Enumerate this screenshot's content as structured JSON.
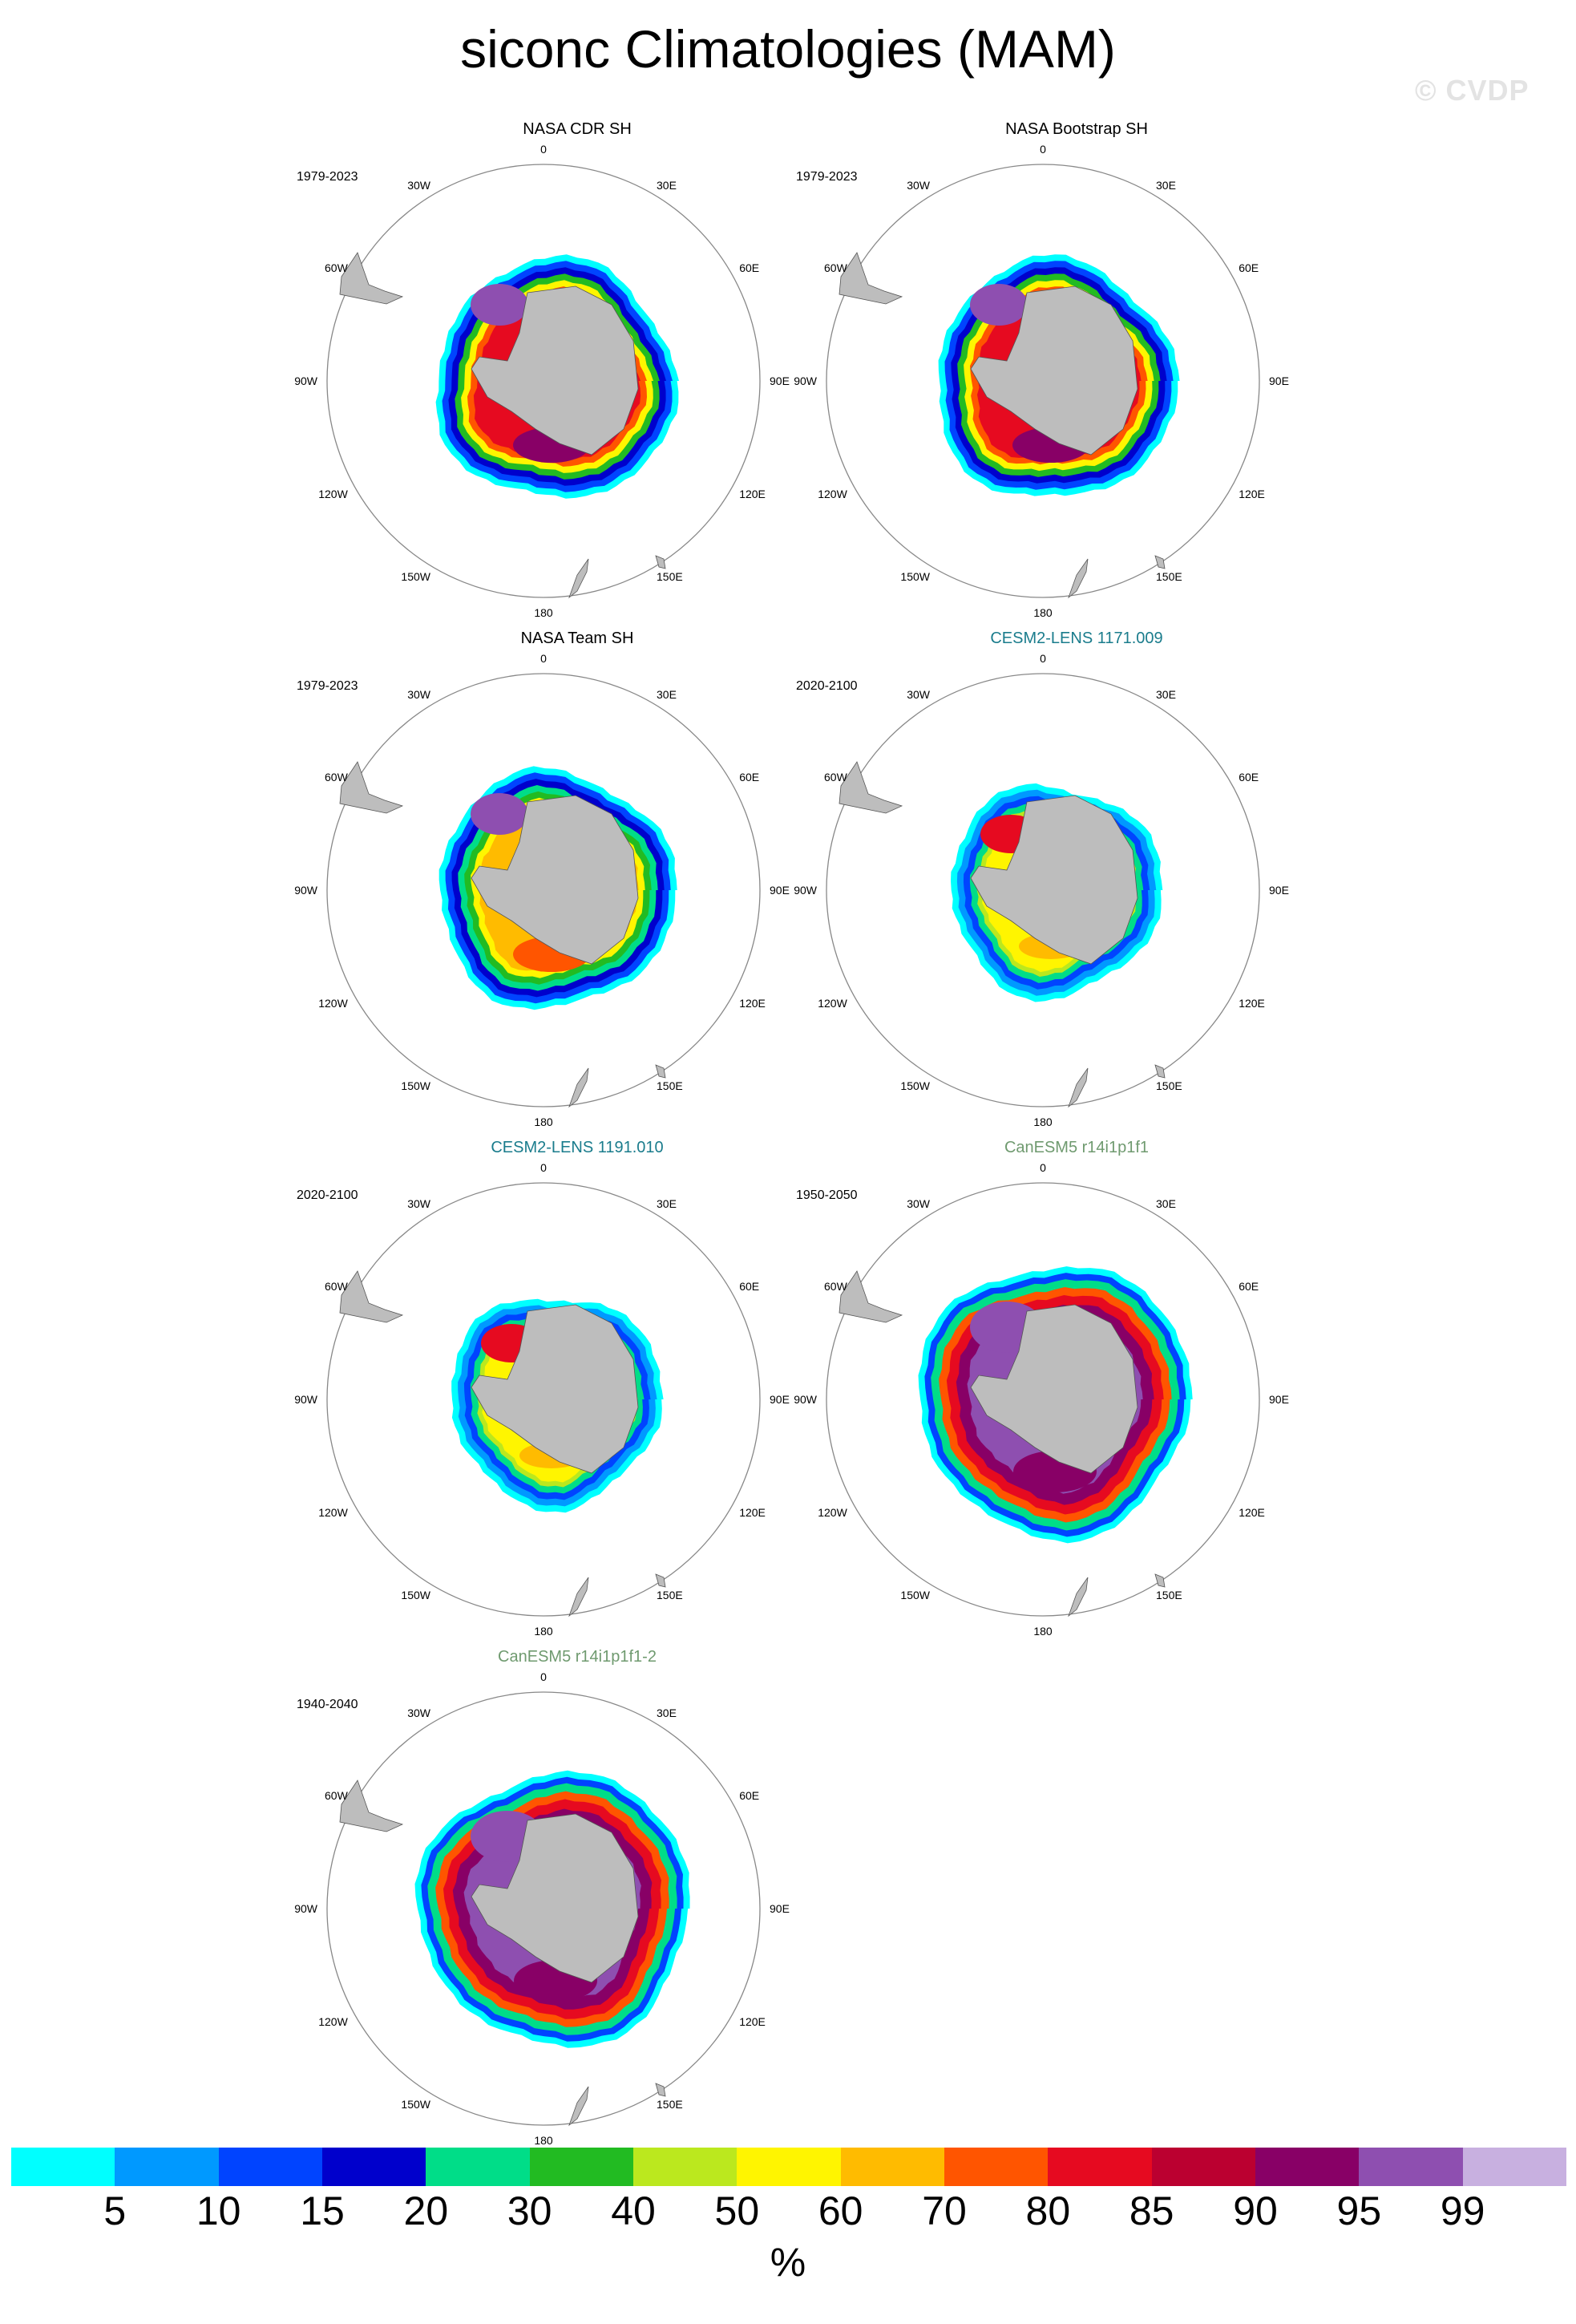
{
  "title": "siconc Climatologies (MAM)",
  "watermark": "© CVDP",
  "lon_labels": [
    "0",
    "30E",
    "60E",
    "90E",
    "120E",
    "150E",
    "180",
    "150W",
    "120W",
    "90W",
    "60W",
    "30W"
  ],
  "panels": [
    {
      "title": "NASA CDR SH",
      "title_color": "#000000",
      "years": "1979-2023",
      "style": "obs_a"
    },
    {
      "title": "NASA Bootstrap SH",
      "title_color": "#000000",
      "years": "1979-2023",
      "style": "obs_b"
    },
    {
      "title": "NASA Team SH",
      "title_color": "#000000",
      "years": "1979-2023",
      "style": "obs_c"
    },
    {
      "title": "CESM2-LENS 1171.009",
      "title_color": "#1a7c8c",
      "years": "2020-2100",
      "style": "cesm"
    },
    {
      "title": "CESM2-LENS 1191.010",
      "title_color": "#1a7c8c",
      "years": "2020-2100",
      "style": "cesm"
    },
    {
      "title": "CanESM5 r14i1p1f1",
      "title_color": "#6f9a6f",
      "years": "1950-2050",
      "style": "can"
    },
    {
      "title": "CanESM5 r14i1p1f1-2",
      "title_color": "#6f9a6f",
      "years": "1940-2040",
      "style": "can"
    }
  ],
  "colorbar": {
    "colors": [
      "#00ffff",
      "#0099ff",
      "#0044ff",
      "#0000cc",
      "#00dd88",
      "#22bb22",
      "#bbe81e",
      "#fff500",
      "#ffbb00",
      "#ff5500",
      "#e60a20",
      "#bb0030",
      "#880066",
      "#8e4fb0",
      "#c8b0e0"
    ],
    "labels": [
      "5",
      "10",
      "15",
      "20",
      "30",
      "40",
      "50",
      "60",
      "70",
      "80",
      "85",
      "90",
      "95",
      "99"
    ],
    "units": "%"
  }
}
